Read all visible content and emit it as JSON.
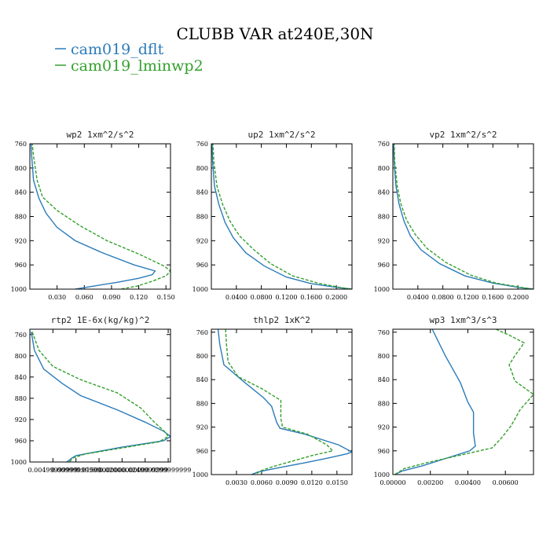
{
  "title": "CLUBB VAR at240E,30N",
  "legend": [
    {
      "label": "cam019_dflt",
      "color": "#2b7bb9"
    },
    {
      "label": "cam019_lminwp2",
      "color": "#33a02c"
    }
  ],
  "chart_data": [
    {
      "type": "line",
      "title": "wp2  1xm^2/s^2",
      "y": [
        760,
        800,
        840,
        880,
        920,
        960,
        1000
      ],
      "ylim": [
        1000,
        760
      ],
      "yticks": [
        "760",
        "800",
        "840",
        "880",
        "920",
        "960",
        "1000"
      ],
      "xlim": [
        0.0,
        0.155
      ],
      "xticks": [
        {
          "value": 0.03,
          "label": "0.030"
        },
        {
          "value": 0.06,
          "label": "0.060"
        },
        {
          "value": 0.09,
          "label": "0.090"
        },
        {
          "value": 0.12,
          "label": "0.120"
        },
        {
          "value": 0.15,
          "label": "0.150"
        }
      ],
      "series": [
        {
          "name": "cam019_dflt",
          "color": "#2b7bb9",
          "dash": "",
          "points": [
            [
              0.001,
              750
            ],
            [
              0.002,
              780
            ],
            [
              0.004,
              820
            ],
            [
              0.01,
              850
            ],
            [
              0.018,
              875
            ],
            [
              0.03,
              898
            ],
            [
              0.05,
              920
            ],
            [
              0.08,
              940
            ],
            [
              0.115,
              960
            ],
            [
              0.138,
              970
            ],
            [
              0.135,
              976
            ],
            [
              0.12,
              982
            ],
            [
              0.095,
              989
            ],
            [
              0.07,
              995
            ],
            [
              0.05,
              1000
            ]
          ]
        },
        {
          "name": "cam019_lminwp2",
          "color": "#33a02c",
          "dash": "4,2",
          "points": [
            [
              0.002,
              750
            ],
            [
              0.004,
              780
            ],
            [
              0.008,
              820
            ],
            [
              0.014,
              848
            ],
            [
              0.03,
              870
            ],
            [
              0.055,
              895
            ],
            [
              0.085,
              920
            ],
            [
              0.12,
              942
            ],
            [
              0.148,
              962
            ],
            [
              0.155,
              970
            ],
            [
              0.15,
              978
            ],
            [
              0.135,
              987
            ],
            [
              0.118,
              995
            ],
            [
              0.1,
              1000
            ]
          ]
        }
      ]
    },
    {
      "type": "line",
      "title": "up2  1xm^2/s^2",
      "y": [
        760,
        800,
        840,
        880,
        920,
        960,
        1000
      ],
      "ylim": [
        1000,
        760
      ],
      "yticks": [
        "760",
        "800",
        "840",
        "880",
        "920",
        "960",
        "1000"
      ],
      "xlim": [
        0.0,
        0.225
      ],
      "xticks": [
        {
          "value": 0.04,
          "label": "0.0400"
        },
        {
          "value": 0.08,
          "label": "0.0800"
        },
        {
          "value": 0.12,
          "label": "0.1200"
        },
        {
          "value": 0.16,
          "label": "0.1600"
        },
        {
          "value": 0.2,
          "label": "0.2000"
        }
      ],
      "series": [
        {
          "name": "cam019_dflt",
          "color": "#2b7bb9",
          "dash": "",
          "points": [
            [
              0.001,
              750
            ],
            [
              0.002,
              790
            ],
            [
              0.005,
              830
            ],
            [
              0.012,
              860
            ],
            [
              0.022,
              890
            ],
            [
              0.035,
              915
            ],
            [
              0.055,
              940
            ],
            [
              0.085,
              962
            ],
            [
              0.12,
              980
            ],
            [
              0.16,
              991
            ],
            [
              0.2,
              997
            ],
            [
              0.225,
              1000
            ]
          ]
        },
        {
          "name": "cam019_lminwp2",
          "color": "#33a02c",
          "dash": "4,2",
          "points": [
            [
              0.002,
              750
            ],
            [
              0.004,
              790
            ],
            [
              0.009,
              830
            ],
            [
              0.018,
              860
            ],
            [
              0.03,
              888
            ],
            [
              0.045,
              912
            ],
            [
              0.068,
              935
            ],
            [
              0.095,
              958
            ],
            [
              0.13,
              978
            ],
            [
              0.17,
              990
            ],
            [
              0.205,
              997
            ],
            [
              0.225,
              1000
            ]
          ]
        }
      ]
    },
    {
      "type": "line",
      "title": "vp2  1xm^2/s^2",
      "y": [
        760,
        800,
        840,
        880,
        920,
        960,
        1000
      ],
      "ylim": [
        1000,
        760
      ],
      "yticks": [
        "760",
        "800",
        "840",
        "880",
        "920",
        "960",
        "1000"
      ],
      "xlim": [
        0.0,
        0.225
      ],
      "xticks": [
        {
          "value": 0.04,
          "label": "0.0400"
        },
        {
          "value": 0.08,
          "label": "0.0800"
        },
        {
          "value": 0.12,
          "label": "0.1200"
        },
        {
          "value": 0.16,
          "label": "0.1600"
        },
        {
          "value": 0.2,
          "label": "0.2000"
        }
      ],
      "series": [
        {
          "name": "cam019_dflt",
          "color": "#2b7bb9",
          "dash": "",
          "points": [
            [
              0.001,
              750
            ],
            [
              0.002,
              790
            ],
            [
              0.005,
              830
            ],
            [
              0.01,
              860
            ],
            [
              0.018,
              888
            ],
            [
              0.028,
              912
            ],
            [
              0.045,
              935
            ],
            [
              0.075,
              958
            ],
            [
              0.115,
              978
            ],
            [
              0.16,
              990
            ],
            [
              0.2,
              997
            ],
            [
              0.225,
              1000
            ]
          ]
        },
        {
          "name": "cam019_lminwp2",
          "color": "#33a02c",
          "dash": "4,2",
          "points": [
            [
              0.002,
              750
            ],
            [
              0.003,
              790
            ],
            [
              0.007,
              830
            ],
            [
              0.013,
              860
            ],
            [
              0.022,
              886
            ],
            [
              0.036,
              910
            ],
            [
              0.055,
              933
            ],
            [
              0.085,
              956
            ],
            [
              0.125,
              977
            ],
            [
              0.165,
              990
            ],
            [
              0.205,
              997
            ],
            [
              0.225,
              1000
            ]
          ]
        }
      ]
    },
    {
      "type": "line",
      "title": "rtp2  1E-6x(kg/kg)^2",
      "y": [
        760,
        800,
        840,
        880,
        920,
        960,
        1000
      ],
      "ylim": [
        1000,
        750
      ],
      "yticks": [
        "760",
        "800",
        "840",
        "880",
        "920",
        "960",
        "1000"
      ],
      "xlim": [
        0.0,
        0.0305
      ],
      "xticks": [
        {
          "value": 0.005,
          "label": "0.00499999999"
        },
        {
          "value": 0.01,
          "label": "0.00999999999"
        },
        {
          "value": 0.015,
          "label": "0.0150000000"
        },
        {
          "value": 0.02,
          "label": "0.0200000000"
        },
        {
          "value": 0.025,
          "label": "0.0249999999"
        },
        {
          "value": 0.03,
          "label": "0.0299999999"
        }
      ],
      "series": [
        {
          "name": "cam019_dflt",
          "color": "#2b7bb9",
          "dash": "",
          "points": [
            [
              0.0003,
              755
            ],
            [
              0.001,
              790
            ],
            [
              0.003,
              825
            ],
            [
              0.007,
              852
            ],
            [
              0.011,
              875
            ],
            [
              0.019,
              902
            ],
            [
              0.025,
              925
            ],
            [
              0.029,
              942
            ],
            [
              0.0305,
              952
            ],
            [
              0.029,
              960
            ],
            [
              0.02,
              972
            ],
            [
              0.013,
              983
            ],
            [
              0.01,
              988
            ],
            [
              0.009,
              993
            ],
            [
              0.0085,
              997
            ],
            [
              0.008,
              1000
            ]
          ]
        },
        {
          "name": "cam019_lminwp2",
          "color": "#33a02c",
          "dash": "4,2",
          "points": [
            [
              0.0005,
              755
            ],
            [
              0.002,
              790
            ],
            [
              0.005,
              820
            ],
            [
              0.011,
              845
            ],
            [
              0.019,
              870
            ],
            [
              0.024,
              898
            ],
            [
              0.027,
              925
            ],
            [
              0.0295,
              945
            ],
            [
              0.03,
              952
            ],
            [
              0.028,
              962
            ],
            [
              0.019,
              975
            ],
            [
              0.012,
              985
            ],
            [
              0.0095,
              992
            ],
            [
              0.0085,
              1000
            ]
          ]
        }
      ]
    },
    {
      "type": "line",
      "title": "thlp2  1xK^2",
      "y": [
        760,
        800,
        840,
        880,
        920,
        960,
        1000
      ],
      "ylim": [
        1000,
        755
      ],
      "yticks": [
        "760",
        "800",
        "840",
        "880",
        "920",
        "960",
        "1000"
      ],
      "xlim": [
        0.0,
        0.0168
      ],
      "xticks": [
        {
          "value": 0.003,
          "label": "0.0030"
        },
        {
          "value": 0.006,
          "label": "0.0060"
        },
        {
          "value": 0.009,
          "label": "0.0090"
        },
        {
          "value": 0.012,
          "label": "0.0120"
        },
        {
          "value": 0.015,
          "label": "0.0150"
        }
      ],
      "series": [
        {
          "name": "cam019_dflt",
          "color": "#2b7bb9",
          "dash": "",
          "points": [
            [
              0.0008,
              755
            ],
            [
              0.001,
              780
            ],
            [
              0.0015,
              815
            ],
            [
              0.004,
              845
            ],
            [
              0.0062,
              870
            ],
            [
              0.0072,
              885
            ],
            [
              0.0078,
              912
            ],
            [
              0.0082,
              922
            ],
            [
              0.0112,
              932
            ],
            [
              0.0152,
              950
            ],
            [
              0.0168,
              962
            ],
            [
              0.0162,
              965
            ],
            [
              0.014,
              972
            ],
            [
              0.0112,
              980
            ],
            [
              0.0086,
              987
            ],
            [
              0.0068,
              992
            ],
            [
              0.0055,
              996
            ],
            [
              0.0048,
              1000
            ]
          ]
        },
        {
          "name": "cam019_lminwp2",
          "color": "#33a02c",
          "dash": "4,2",
          "points": [
            [
              0.0017,
              755
            ],
            [
              0.0018,
              780
            ],
            [
              0.002,
              810
            ],
            [
              0.0032,
              835
            ],
            [
              0.006,
              855
            ],
            [
              0.0083,
              875
            ],
            [
              0.0083,
              905
            ],
            [
              0.0085,
              920
            ],
            [
              0.0115,
              932
            ],
            [
              0.0138,
              950
            ],
            [
              0.0145,
              960
            ],
            [
              0.012,
              968
            ],
            [
              0.0095,
              978
            ],
            [
              0.0075,
              986
            ],
            [
              0.006,
              993
            ],
            [
              0.0052,
              1000
            ]
          ]
        }
      ]
    },
    {
      "type": "line",
      "title": "wp3  1xm^3/s^3",
      "y": [
        760,
        800,
        840,
        880,
        920,
        960,
        1000
      ],
      "ylim": [
        1000,
        755
      ],
      "yticks": [
        "760",
        "800",
        "840",
        "880",
        "920",
        "960",
        "1000"
      ],
      "xlim": [
        0.0,
        0.0075
      ],
      "xticks": [
        {
          "value": 0.0,
          "label": "0.00000"
        },
        {
          "value": 0.002,
          "label": "0.00200"
        },
        {
          "value": 0.004,
          "label": "0.00400"
        },
        {
          "value": 0.006,
          "label": "0.00600"
        }
      ],
      "series": [
        {
          "name": "cam019_dflt",
          "color": "#2b7bb9",
          "dash": "",
          "points": [
            [
              0.0021,
              755
            ],
            [
              0.0028,
              800
            ],
            [
              0.0036,
              845
            ],
            [
              0.004,
              878
            ],
            [
              0.0043,
              895
            ],
            [
              0.0043,
              930
            ],
            [
              0.0044,
              952
            ],
            [
              0.0041,
              960
            ],
            [
              0.0028,
              973
            ],
            [
              0.0016,
              985
            ],
            [
              0.0005,
              994
            ],
            [
              0.0001,
              1000
            ]
          ]
        },
        {
          "name": "cam019_lminwp2",
          "color": "#33a02c",
          "dash": "4,2",
          "points": [
            [
              0.0055,
              755
            ],
            [
              0.0062,
              765
            ],
            [
              0.007,
              778
            ],
            [
              0.0065,
              800
            ],
            [
              0.0062,
              815
            ],
            [
              0.0064,
              832
            ],
            [
              0.0065,
              842
            ],
            [
              0.0075,
              865
            ],
            [
              0.0068,
              890
            ],
            [
              0.0063,
              918
            ],
            [
              0.0058,
              938
            ],
            [
              0.0053,
              955
            ],
            [
              0.0035,
              968
            ],
            [
              0.0018,
              980
            ],
            [
              0.0006,
              990
            ],
            [
              0.0001,
              1000
            ]
          ]
        }
      ]
    }
  ]
}
